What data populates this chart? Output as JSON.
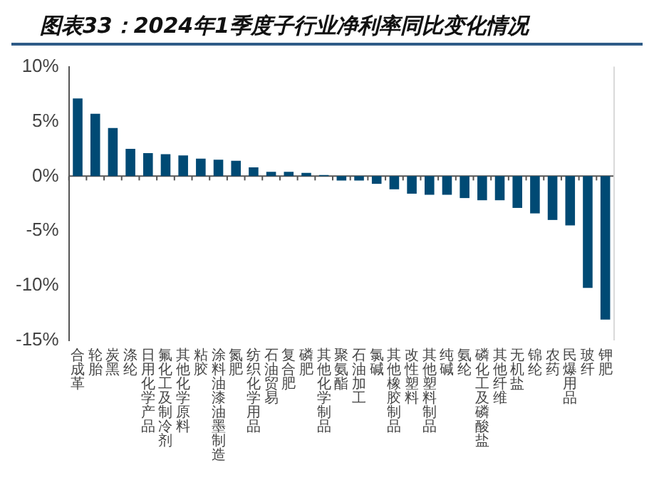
{
  "chart_data": {
    "type": "bar",
    "title": "图表33：2024年1季度子行业净利率同比变化情况",
    "categories": [
      "合成革",
      "轮胎",
      "炭黑",
      "涤纶",
      "日用化学产品",
      "氟化工及制冷剂",
      "其他化学原料",
      "粘胶",
      "涂料油漆油墨制造",
      "氮肥",
      "纺织化学用品",
      "石油贸易",
      "复合肥",
      "磷肥",
      "其他化学制品",
      "聚氨酯",
      "石油加工",
      "氯碱",
      "其他橡胶制品",
      "改性塑料",
      "其他塑料制品",
      "纯碱",
      "氨纶",
      "磷化工及磷酸盐",
      "其他纤维",
      "无机盐",
      "锦纶",
      "农药",
      "民爆用品",
      "玻纤",
      "钾肥"
    ],
    "values": [
      7.1,
      5.7,
      4.4,
      2.5,
      2.1,
      2.0,
      1.9,
      1.6,
      1.5,
      1.4,
      0.8,
      0.4,
      0.4,
      0.3,
      0.1,
      -0.4,
      -0.4,
      -0.7,
      -1.2,
      -1.6,
      -1.7,
      -1.7,
      -2.0,
      -2.2,
      -2.2,
      -2.9,
      -3.4,
      -4.0,
      -4.5,
      -10.2,
      -13.1
    ],
    "color": "#004a74",
    "ylim": [
      -15,
      10
    ],
    "yticks": [
      {
        "value": -15,
        "label": "-15%"
      },
      {
        "value": -10,
        "label": "-10%"
      },
      {
        "value": -5,
        "label": "-5%"
      },
      {
        "value": 0,
        "label": "0%"
      },
      {
        "value": 5,
        "label": "5%"
      },
      {
        "value": 10,
        "label": "10%"
      }
    ],
    "ref_lines": [
      {
        "axis": "y",
        "value": 0,
        "color": "#555555"
      }
    ],
    "grid": false,
    "legend": false
  }
}
